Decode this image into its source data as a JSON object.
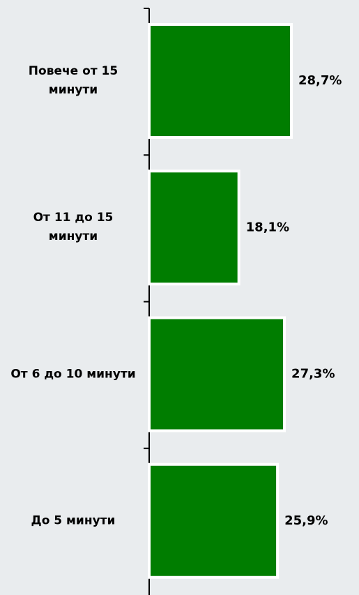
{
  "chart_data": {
    "type": "hbar",
    "categories": [
      "Повече от 15 минути",
      "От 11 до 15 минути",
      "От 6 до 10 минути",
      "До 5 минути"
    ],
    "values": [
      28.7,
      18.1,
      27.3,
      25.9
    ],
    "value_labels": [
      "28,7%",
      "18,1%",
      "27,3%",
      "25,9%"
    ],
    "color": "#007d00"
  }
}
